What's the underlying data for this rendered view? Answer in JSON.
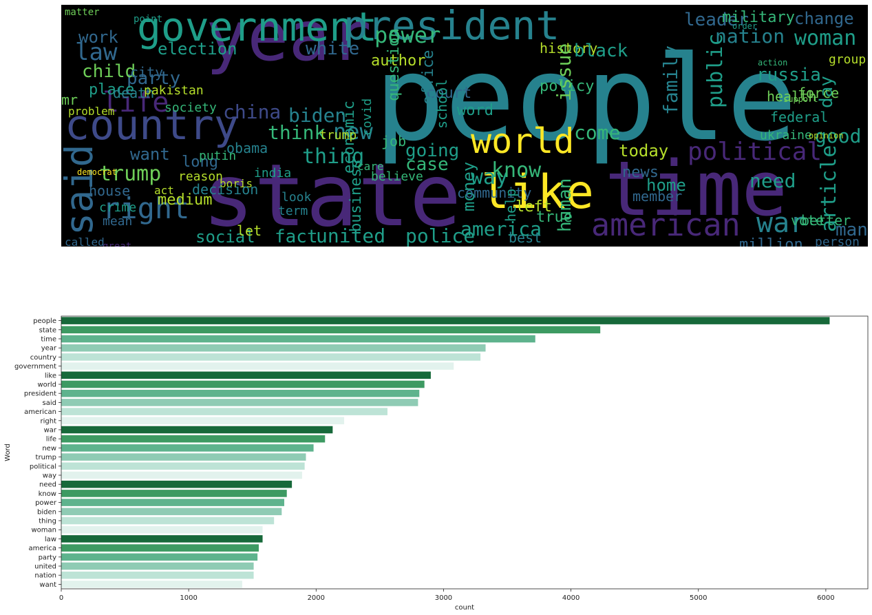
{
  "chart_data": [
    {
      "type": "wordcloud",
      "background": "#000000",
      "colormap": "viridis",
      "words": [
        "people",
        "state",
        "time",
        "year",
        "country",
        "government",
        "like",
        "world",
        "president",
        "said",
        "american",
        "right",
        "war",
        "life",
        "new",
        "trump",
        "political",
        "way",
        "need",
        "know",
        "power",
        "biden",
        "thing",
        "woman",
        "law",
        "america",
        "party",
        "united",
        "nation",
        "want",
        "china",
        "russia",
        "election",
        "white",
        "author",
        "leader",
        "military",
        "change",
        "work",
        "child",
        "place",
        "mr",
        "think",
        "fact",
        "police",
        "social",
        "medium",
        "house",
        "crime",
        "mean",
        "called",
        "long",
        "history",
        "black",
        "family",
        "public",
        "day",
        "good",
        "article",
        "man",
        "million",
        "vote",
        "better",
        "person",
        "issue",
        "human",
        "come",
        "today",
        "news",
        "home",
        "member",
        "business",
        "economic",
        "money",
        "case",
        "going",
        "care",
        "believe",
        "reason",
        "trump",
        "obama",
        "putin",
        "india",
        "boris",
        "act",
        "decision",
        "look",
        "term",
        "let",
        "true",
        "community",
        "help",
        "best",
        "left",
        "health",
        "federal",
        "ukraine",
        "group",
        "force",
        "policy",
        "court",
        "job",
        "word",
        "school",
        "office",
        "question",
        "covid",
        "death",
        "city",
        "pakistan",
        "society",
        "problem",
        "matter",
        "point",
        "great",
        "order",
        "action",
        "support",
        "opinion",
        "democrat"
      ]
    },
    {
      "type": "bar",
      "orientation": "horizontal",
      "xlabel": "count",
      "ylabel": "Word",
      "xlim": [
        0,
        6330
      ],
      "xticks": [
        0,
        1000,
        2000,
        3000,
        4000,
        5000,
        6000
      ],
      "palette": [
        "#17693a",
        "#3d9a62",
        "#5eb38d",
        "#8fcbb4",
        "#bde3d6",
        "#e2f2ed"
      ],
      "categories": [
        "people",
        "state",
        "time",
        "year",
        "country",
        "government",
        "like",
        "world",
        "president",
        "said",
        "american",
        "right",
        "war",
        "life",
        "new",
        "trump",
        "political",
        "way",
        "need",
        "know",
        "power",
        "biden",
        "thing",
        "woman",
        "law",
        "america",
        "party",
        "united",
        "nation",
        "want"
      ],
      "values": [
        6030,
        4230,
        3720,
        3330,
        3290,
        3080,
        2900,
        2850,
        2810,
        2800,
        2560,
        2220,
        2130,
        2070,
        1980,
        1920,
        1910,
        1890,
        1810,
        1770,
        1750,
        1730,
        1670,
        1580,
        1580,
        1550,
        1540,
        1510,
        1510,
        1420
      ]
    }
  ]
}
